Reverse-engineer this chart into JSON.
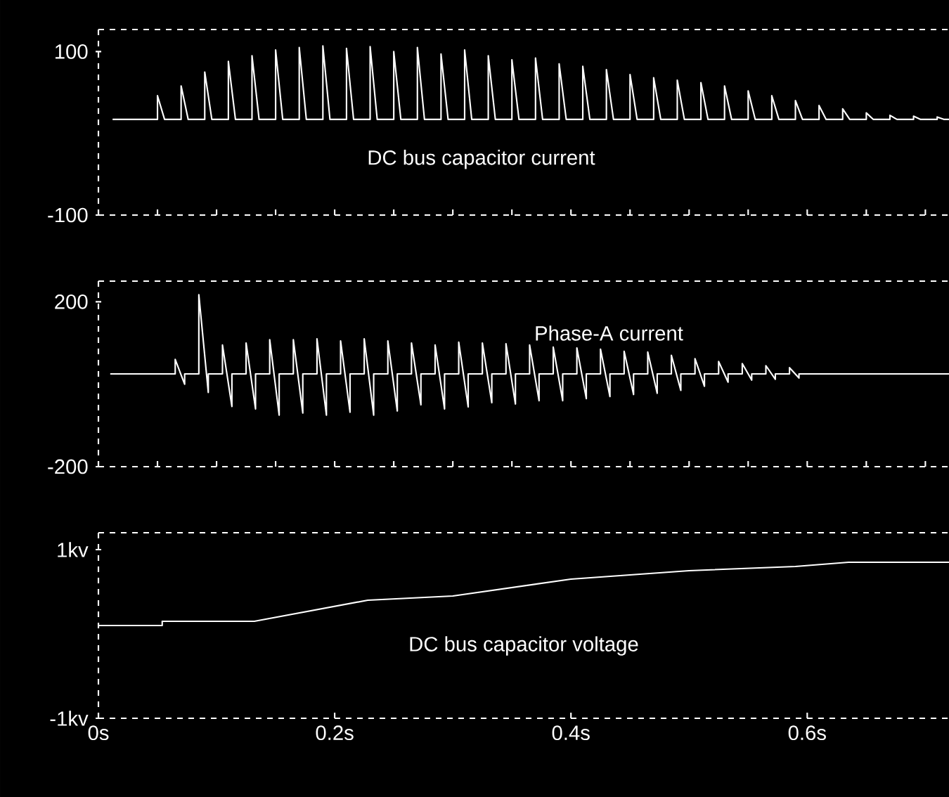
{
  "chart_data": [
    {
      "type": "line",
      "xlim": [
        0,
        0.72
      ],
      "ylim": [
        -100,
        127
      ],
      "yticks": [
        100,
        -100
      ],
      "tick_labels": "y",
      "line_style": "solid",
      "series": [
        {
          "name": "DC bus capacitor current",
          "color": "#ffffff",
          "x": [
            0.012,
            0.05,
            0.05,
            0.056,
            0.07,
            0.07,
            0.076,
            0.09,
            0.09,
            0.096,
            0.11,
            0.11,
            0.116,
            0.13,
            0.13,
            0.136,
            0.15,
            0.15,
            0.156,
            0.17,
            0.17,
            0.176,
            0.19,
            0.19,
            0.196,
            0.21,
            0.21,
            0.216,
            0.23,
            0.23,
            0.236,
            0.25,
            0.25,
            0.256,
            0.27,
            0.27,
            0.276,
            0.29,
            0.29,
            0.296,
            0.31,
            0.31,
            0.316,
            0.33,
            0.33,
            0.336,
            0.35,
            0.35,
            0.356,
            0.37,
            0.37,
            0.376,
            0.39,
            0.39,
            0.396,
            0.41,
            0.41,
            0.416,
            0.43,
            0.43,
            0.436,
            0.45,
            0.45,
            0.456,
            0.47,
            0.47,
            0.476,
            0.49,
            0.49,
            0.496,
            0.51,
            0.51,
            0.516,
            0.53,
            0.53,
            0.536,
            0.55,
            0.55,
            0.556,
            0.57,
            0.57,
            0.576,
            0.59,
            0.59,
            0.596,
            0.61,
            0.61,
            0.616,
            0.63,
            0.63,
            0.636,
            0.65,
            0.65,
            0.656,
            0.67,
            0.67,
            0.676,
            0.69,
            0.69,
            0.696,
            0.71,
            0.71,
            0.716,
            0.72
          ],
          "values": [
            17,
            17,
            46,
            17,
            17,
            58,
            17,
            17,
            75,
            17,
            17,
            88,
            17,
            17,
            95,
            17,
            17,
            102,
            17,
            17,
            105,
            17,
            17,
            107,
            17,
            17,
            104,
            17,
            17,
            106,
            17,
            17,
            100,
            17,
            17,
            105,
            17,
            17,
            97,
            17,
            17,
            102,
            17,
            17,
            95,
            17,
            17,
            90,
            17,
            17,
            92,
            17,
            17,
            85,
            17,
            17,
            82,
            17,
            17,
            78,
            17,
            17,
            72,
            17,
            17,
            68,
            17,
            17,
            65,
            17,
            17,
            62,
            17,
            17,
            58,
            17,
            17,
            52,
            17,
            17,
            46,
            17,
            17,
            40,
            17,
            17,
            34,
            17,
            17,
            30,
            17,
            17,
            25,
            17,
            17,
            22,
            17,
            17,
            21,
            17,
            17,
            20,
            17,
            17
          ]
        }
      ]
    },
    {
      "type": "line",
      "xlim": [
        0,
        0.72
      ],
      "ylim": [
        -200,
        250
      ],
      "yticks": [
        200,
        -200
      ],
      "tick_labels": "y",
      "line_style": "solid",
      "series": [
        {
          "name": "Phase-A current",
          "color": "#ffffff",
          "x": [
            0.01,
            0.065,
            0.065,
            0.073,
            0.073,
            0.085,
            0.085,
            0.093,
            0.093,
            0.105,
            0.105,
            0.113,
            0.113,
            0.125,
            0.125,
            0.133,
            0.133,
            0.145,
            0.145,
            0.153,
            0.153,
            0.165,
            0.165,
            0.173,
            0.173,
            0.185,
            0.185,
            0.193,
            0.193,
            0.205,
            0.205,
            0.213,
            0.213,
            0.225,
            0.225,
            0.233,
            0.233,
            0.245,
            0.245,
            0.253,
            0.253,
            0.265,
            0.265,
            0.273,
            0.273,
            0.285,
            0.285,
            0.293,
            0.293,
            0.305,
            0.305,
            0.313,
            0.313,
            0.325,
            0.325,
            0.333,
            0.333,
            0.345,
            0.345,
            0.353,
            0.353,
            0.365,
            0.365,
            0.373,
            0.373,
            0.385,
            0.385,
            0.393,
            0.393,
            0.405,
            0.405,
            0.413,
            0.413,
            0.425,
            0.425,
            0.433,
            0.433,
            0.445,
            0.445,
            0.453,
            0.453,
            0.465,
            0.465,
            0.473,
            0.473,
            0.485,
            0.485,
            0.493,
            0.493,
            0.505,
            0.505,
            0.513,
            0.513,
            0.525,
            0.525,
            0.533,
            0.533,
            0.545,
            0.545,
            0.553,
            0.553,
            0.565,
            0.565,
            0.573,
            0.573,
            0.585,
            0.585,
            0.593,
            0.593,
            0.6,
            0.72
          ],
          "values": [
            25,
            25,
            60,
            0,
            25,
            25,
            217,
            -20,
            25,
            25,
            95,
            -54,
            25,
            25,
            100,
            -60,
            25,
            25,
            108,
            -75,
            25,
            25,
            108,
            -70,
            25,
            25,
            110,
            -75,
            25,
            25,
            105,
            -68,
            25,
            25,
            110,
            -75,
            25,
            25,
            105,
            -65,
            25,
            25,
            100,
            -50,
            25,
            25,
            95,
            -60,
            25,
            25,
            102,
            -55,
            25,
            25,
            100,
            -45,
            25,
            25,
            98,
            -48,
            25,
            25,
            95,
            -40,
            25,
            25,
            90,
            -40,
            25,
            25,
            88,
            -35,
            25,
            25,
            85,
            -30,
            25,
            25,
            80,
            -25,
            25,
            25,
            78,
            -22,
            25,
            25,
            70,
            -15,
            25,
            25,
            62,
            -5,
            25,
            25,
            55,
            5,
            25,
            25,
            50,
            10,
            25,
            25,
            45,
            12,
            25,
            25,
            40,
            15,
            25,
            25,
            25
          ]
        }
      ]
    },
    {
      "type": "line",
      "xlim": [
        0,
        0.72
      ],
      "ylim": [
        -1,
        1.2
      ],
      "yticks": [
        {
          "value": 1,
          "label": "1kv"
        },
        {
          "value": -1,
          "label": "-1kv"
        }
      ],
      "xticks": [
        {
          "value": 0,
          "label": "0s"
        },
        {
          "value": 0.2,
          "label": "0.2s"
        },
        {
          "value": 0.4,
          "label": "0.4s"
        },
        {
          "value": 0.6,
          "label": "0.6s"
        }
      ],
      "line_style": "solid",
      "series": [
        {
          "name": "DC bus capacitor voltage",
          "color": "#ffffff",
          "x": [
            0,
            0.054,
            0.054,
            0.132,
            0.228,
            0.3,
            0.4,
            0.5,
            0.59,
            0.635,
            0.72
          ],
          "values": [
            0.1,
            0.1,
            0.15,
            0.15,
            0.4,
            0.45,
            0.65,
            0.75,
            0.8,
            0.85,
            0.85
          ]
        }
      ]
    }
  ]
}
